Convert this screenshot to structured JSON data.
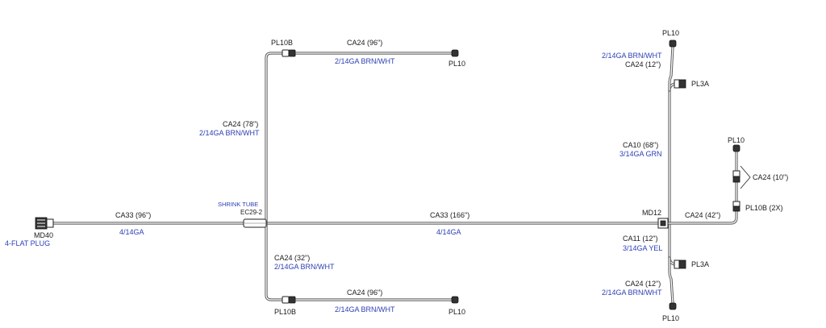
{
  "labels": {
    "pl10b_top": "PL10B",
    "ca24_top": "CA24 (96\")",
    "gauge_top": "2/14GA BRN/WHT",
    "pl10_top": "PL10",
    "ca24_78": "CA24 (78\")",
    "gauge_78": "2/14GA BRN/WHT",
    "shrink_tube": "SHRINK TUBE",
    "ec29": "EC29-2",
    "ca33_96": "CA33 (96\")",
    "gauge_4_left": "4/14GA",
    "md40": "MD40",
    "flat_plug": "4-FLAT PLUG",
    "ca33_166": "CA33 (166\")",
    "gauge_4_mid": "4/14GA",
    "ca24_32": "CA24 (32\")",
    "gauge_32": "2/14GA BRN/WHT",
    "ca24_bottom": "CA24 (96\")",
    "gauge_bottom": "2/14GA BRN/WHT",
    "pl10b_bottom": "PL10B",
    "pl10_bottom": "PL10",
    "pl10_rtop": "PL10",
    "gauge_rtop": "2/14GA BRN/WHT",
    "ca24_12_top": "CA24 (12\")",
    "pl3a_top": "PL3A",
    "ca10": "CA10 (68\")",
    "gauge_ca10": "3/14GA GRN",
    "md12": "MD12",
    "ca24_42": "CA24 (42\")",
    "pl10_far": "PL10",
    "ca24_10": "CA24 (10\")",
    "pl10b_2x": "PL10B (2X)",
    "ca11": "CA11 (12\")",
    "gauge_ca11": "3/14GA YEL",
    "pl3a_bottom": "PL3A",
    "ca24_12_bottom": "CA24 (12\")",
    "gauge_rbottom": "2/14GA BRN/WHT",
    "pl10_rbottom": "PL10"
  },
  "colors": {
    "label_text": "#1a1a1a",
    "gauge_text": "#2b3fb5",
    "wire": "#555555"
  }
}
